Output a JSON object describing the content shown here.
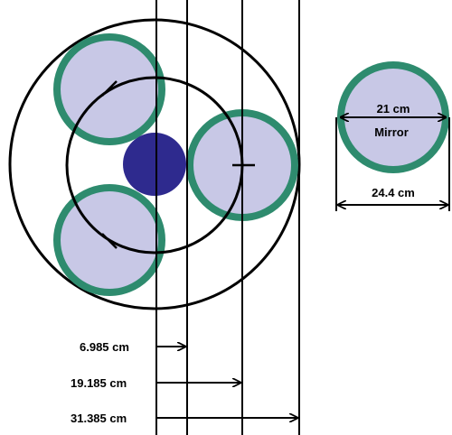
{
  "colors": {
    "mirror_fill": "#C8C8E6",
    "mirror_rim": "#2E8B6E",
    "center_disc": "#2E2A8E",
    "lines": "#000000",
    "background": "#FFFFFF"
  },
  "labels": {
    "dim_1": "6.985 cm",
    "dim_2": "19.185 cm",
    "dim_3": "31.385 cm",
    "mirror_inner": "21 cm",
    "mirror_name": "Mirror",
    "mirror_outer": "24.4 cm"
  }
}
